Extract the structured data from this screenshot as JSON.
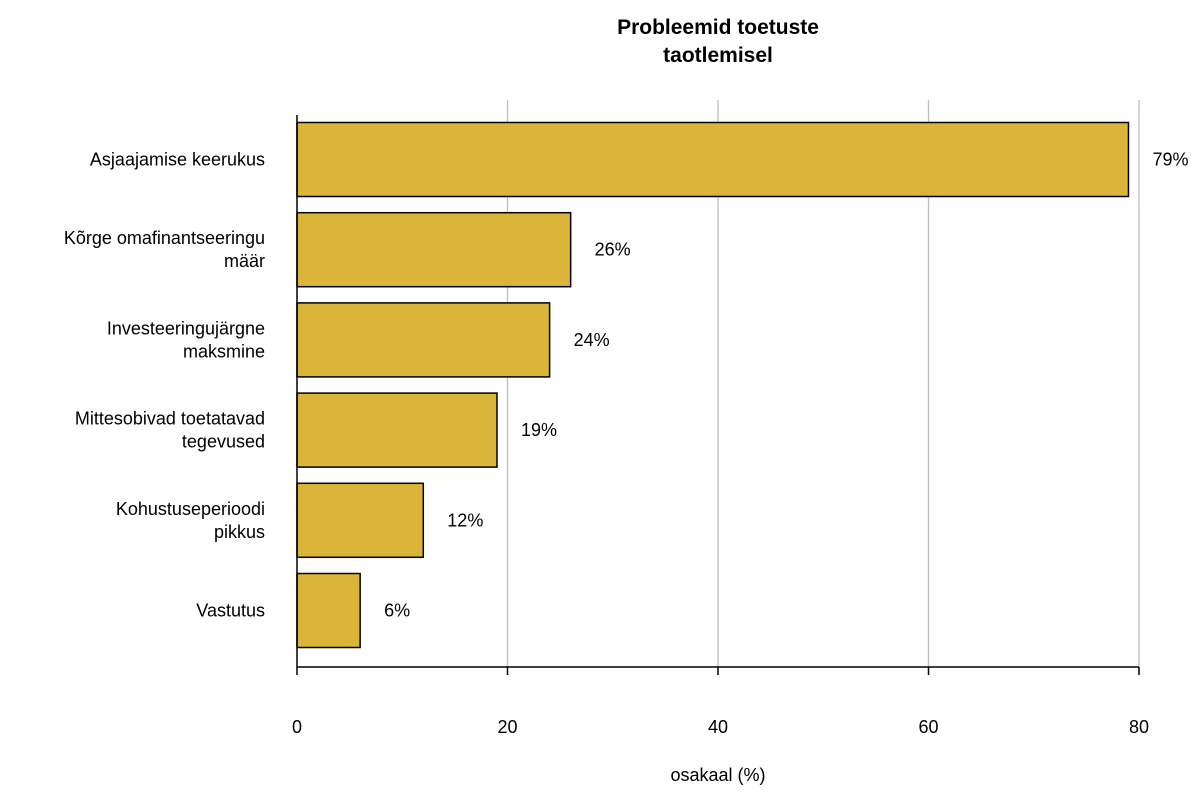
{
  "chart_data": {
    "type": "bar",
    "orientation": "horizontal",
    "title_lines": [
      "Probleemid toetuste",
      "taotlemisel"
    ],
    "xlabel": "osakaal (%)",
    "ylabel": "",
    "categories": [
      [
        "Asjaajamise keerukus"
      ],
      [
        "Kõrge omafinantseeringu",
        "määr"
      ],
      [
        "Investeeringujärgne",
        "maksmine"
      ],
      [
        "Mittesobivad toetatavad",
        "tegevused"
      ],
      [
        "Kohustuseperioodi",
        "pikkus"
      ],
      [
        "Vastutus"
      ]
    ],
    "values": [
      79,
      26,
      24,
      19,
      12,
      6
    ],
    "data_labels": [
      "79%",
      "26%",
      "24%",
      "19%",
      "12%",
      "6%"
    ],
    "xlim": [
      0,
      80
    ],
    "x_ticks": [
      0,
      20,
      40,
      60,
      80
    ],
    "grid": "vertical",
    "legend": "none",
    "colors": {
      "bar": "#DBB53A",
      "bar_edge": "#000000",
      "grid": "#BEBEBE"
    }
  }
}
